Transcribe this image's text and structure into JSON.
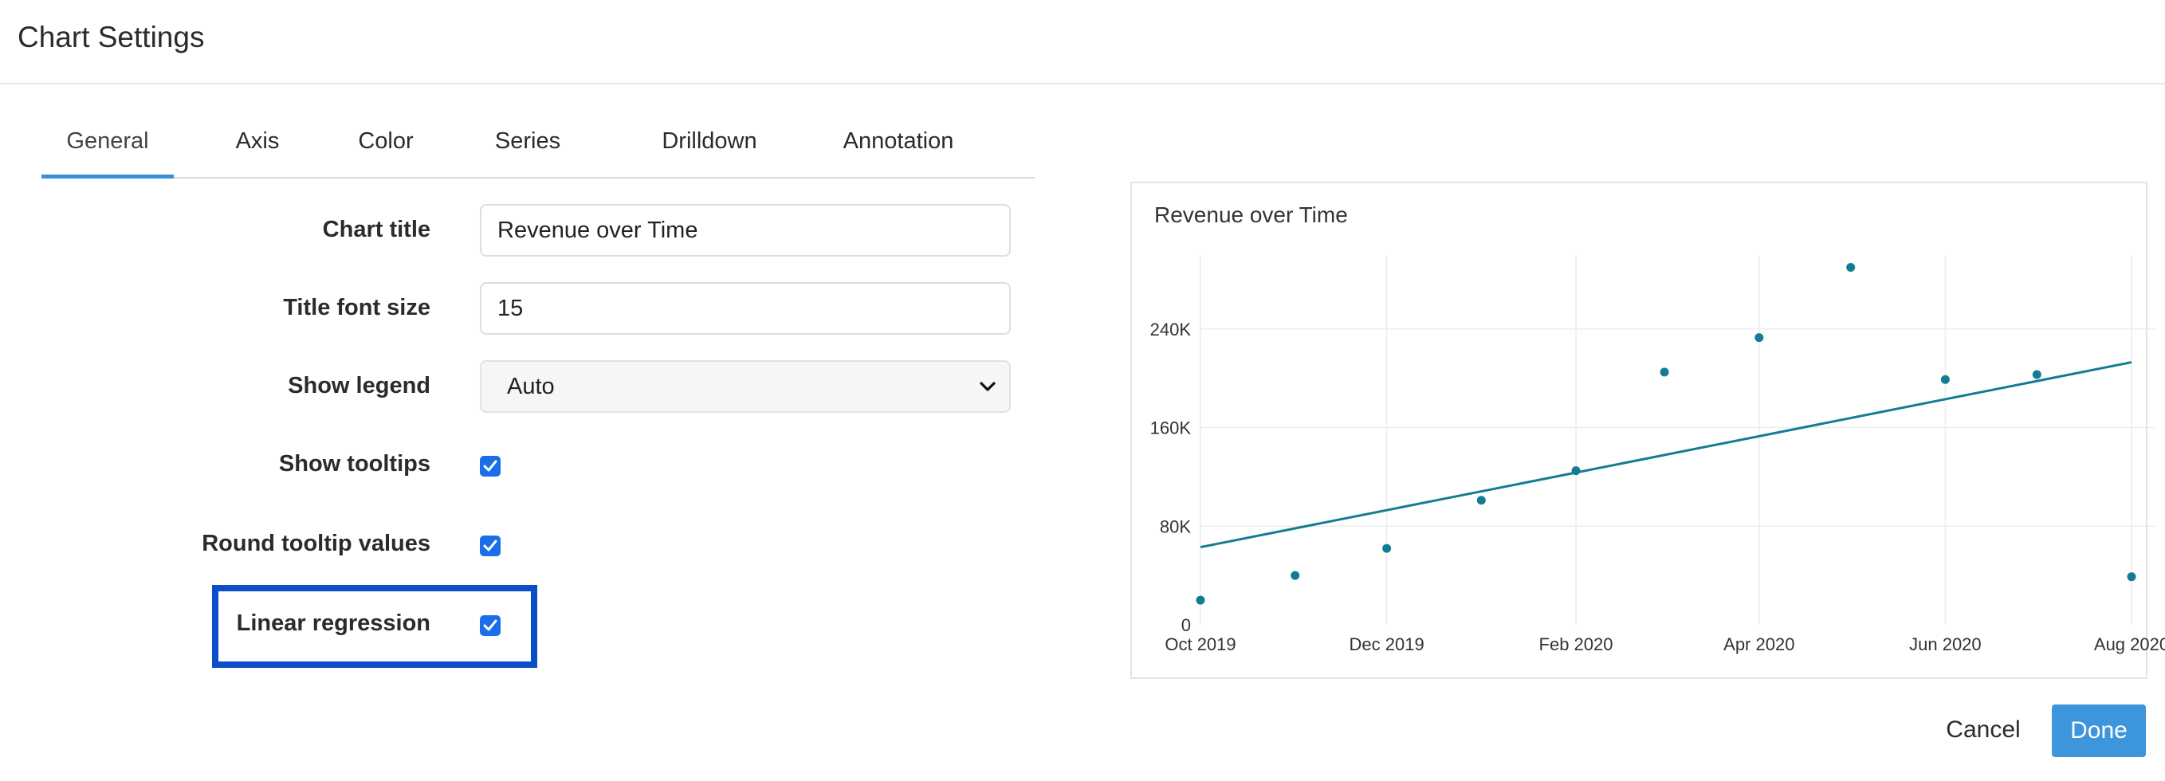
{
  "header": {
    "title": "Chart Settings"
  },
  "tabs": [
    {
      "label": "General",
      "active": true
    },
    {
      "label": "Axis"
    },
    {
      "label": "Color"
    },
    {
      "label": "Series"
    },
    {
      "label": "Drilldown"
    },
    {
      "label": "Annotation"
    }
  ],
  "form": {
    "chart_title": {
      "label": "Chart title",
      "value": "Revenue over Time"
    },
    "title_font_size": {
      "label": "Title font size",
      "value": "15"
    },
    "show_legend": {
      "label": "Show legend",
      "value": "Auto"
    },
    "show_tooltips": {
      "label": "Show tooltips",
      "checked": true
    },
    "round_tooltip_values": {
      "label": "Round tooltip values",
      "checked": true
    },
    "linear_regression": {
      "label": "Linear regression",
      "checked": true
    }
  },
  "chart_data": {
    "type": "scatter",
    "title": "Revenue over Time",
    "x": [
      "2019-10-01",
      "2019-11-01",
      "2019-12-01",
      "2020-01-01",
      "2020-02-01",
      "2020-03-01",
      "2020-04-01",
      "2020-05-01",
      "2020-06-01",
      "2020-07-01",
      "2020-08-01"
    ],
    "values": [
      20000,
      40000,
      62000,
      101000,
      125000,
      205000,
      233000,
      290000,
      199000,
      203000,
      39000
    ],
    "regression_line": {
      "start": [
        "2019-10-01",
        63000
      ],
      "end": [
        "2020-08-01",
        213000
      ]
    },
    "x_ticks": [
      "Oct 2019",
      "Dec 2019",
      "Feb 2020",
      "Apr 2020",
      "Jun 2020",
      "Aug 2020"
    ],
    "y_ticks": [
      "0",
      "80K",
      "160K",
      "240K"
    ],
    "ylim": [
      0,
      300000
    ],
    "grid": true,
    "color": "#127c95"
  },
  "footer": {
    "cancel_label": "Cancel",
    "done_label": "Done"
  }
}
